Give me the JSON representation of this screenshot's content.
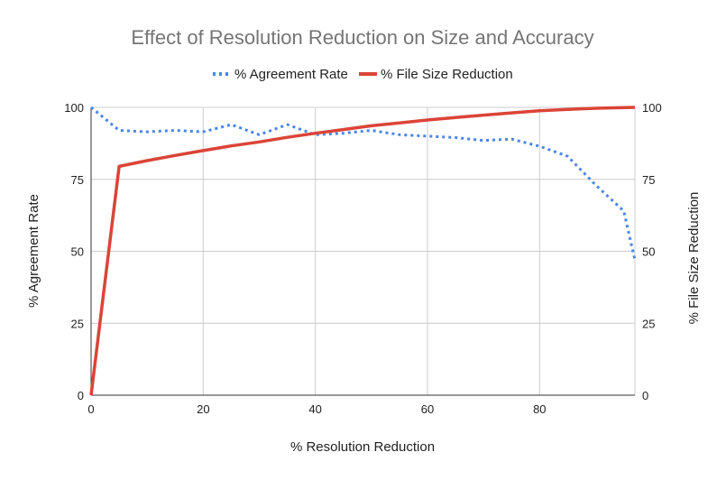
{
  "chart_data": {
    "type": "line",
    "title": "Effect of Resolution Reduction on Size and Accuracy",
    "xlabel": "% Resolution Reduction",
    "ylabel": "% Agreement Rate",
    "y2label": "% File Size Reduction",
    "xlim": [
      0,
      97
    ],
    "ylim": [
      0,
      100
    ],
    "y2lim": [
      0,
      100
    ],
    "x_ticks": [
      0,
      20,
      40,
      60,
      80
    ],
    "y_ticks": [
      0,
      25,
      50,
      75,
      100
    ],
    "y2_ticks": [
      0,
      25,
      50,
      75,
      100
    ],
    "grid": true,
    "legend_position": "top",
    "series": [
      {
        "name": "% Agreement Rate",
        "axis": "left",
        "style": "dotted",
        "color": "#4a86e8",
        "x": [
          0,
          5,
          10,
          15,
          20,
          25,
          30,
          35,
          40,
          45,
          50,
          55,
          60,
          65,
          70,
          75,
          80,
          85,
          90,
          95,
          97
        ],
        "y": [
          100,
          92,
          91.5,
          92,
          91.5,
          94,
          90.5,
          94,
          90.5,
          91,
          92,
          90.5,
          90,
          89.5,
          88.5,
          89,
          86.5,
          83,
          73,
          64,
          47
        ]
      },
      {
        "name": "% File Size Reduction",
        "axis": "right",
        "style": "solid",
        "color": "#db4437",
        "x": [
          0,
          5,
          10,
          15,
          20,
          25,
          30,
          35,
          40,
          45,
          50,
          55,
          60,
          65,
          70,
          75,
          80,
          85,
          90,
          95,
          97
        ],
        "y": [
          0,
          79.5,
          81.5,
          83.3,
          85,
          86.6,
          88,
          89.6,
          91,
          92.3,
          93.6,
          94.6,
          95.6,
          96.5,
          97.3,
          98.1,
          98.8,
          99.3,
          99.7,
          99.9,
          100
        ]
      }
    ]
  }
}
